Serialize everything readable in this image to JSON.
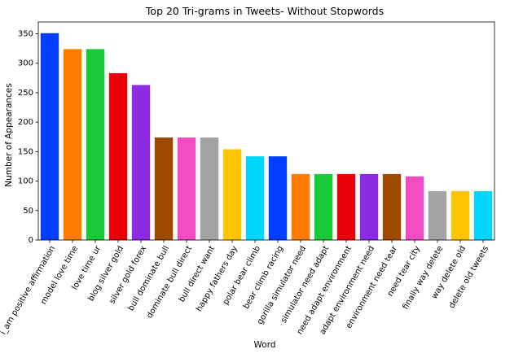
{
  "chart_data": {
    "type": "bar",
    "title": "Top 20 Tri-grams in Tweets- Without Stopwords",
    "xlabel": "Word",
    "ylabel": "Number of Appearances",
    "ylim": [
      0,
      370
    ],
    "yticks": [
      0,
      50,
      100,
      150,
      200,
      250,
      300,
      350
    ],
    "grid": false,
    "legend": "none",
    "categories": [
      "i_am positive affirmation",
      "model love time",
      "love time ur",
      "blog silver gold",
      "silver gold forex",
      "bull dominate bull",
      "dominate bull direct",
      "bull direct want",
      "happy fathers day",
      "polar bear climb",
      "bear climb racing",
      "gorilla simulator need",
      "simulator need adapt",
      "need adapt environment",
      "adapt environment need",
      "environment need tear",
      "need tear city",
      "finally way delete",
      "way delete old",
      "delete old tweets"
    ],
    "values": [
      351,
      324,
      324,
      283,
      263,
      174,
      174,
      174,
      154,
      142,
      142,
      112,
      112,
      112,
      112,
      112,
      108,
      83,
      83,
      83
    ],
    "colors": [
      "#023eff",
      "#ff7c00",
      "#1ac938",
      "#e8000b",
      "#8b2be2",
      "#9f4800",
      "#f14cc1",
      "#a3a3a3",
      "#ffc400",
      "#00d7ff",
      "#023eff",
      "#ff7c00",
      "#1ac938",
      "#e8000b",
      "#8b2be2",
      "#9f4800",
      "#f14cc1",
      "#a3a3a3",
      "#ffc400",
      "#00d7ff"
    ]
  }
}
